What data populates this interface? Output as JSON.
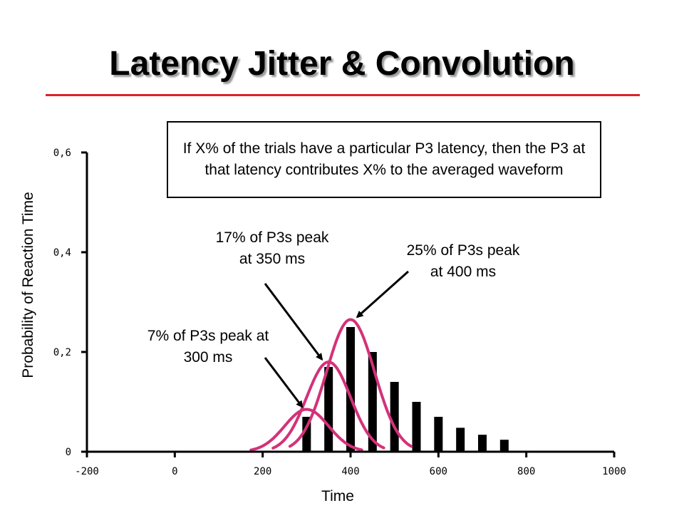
{
  "slide": {
    "title": "Latency Jitter & Convolution",
    "note": "If X% of the trials have a particular P3 latency, then the P3 at that latency contributes X% to the averaged waveform"
  },
  "colors": {
    "title_rule": "#e0202a",
    "bars": "#000000",
    "curves": "#d4317a",
    "arrows": "#000000"
  },
  "chart_data": {
    "type": "bar",
    "xlabel": "Time",
    "ylabel": "Probability of Reaction Time",
    "xlim": [
      -200,
      1000
    ],
    "ylim": [
      0,
      0.6
    ],
    "x_ticks": [
      -200,
      0,
      200,
      400,
      600,
      800,
      1000
    ],
    "x_tick_labels": [
      "-200",
      "0",
      "200",
      "400",
      "600",
      "800",
      "1000"
    ],
    "y_ticks": [
      0,
      0.2,
      0.4,
      0.6
    ],
    "y_tick_labels": [
      "0",
      "0,2",
      "0,4",
      "0,6"
    ],
    "bars": [
      {
        "x": 300,
        "y": 0.07
      },
      {
        "x": 350,
        "y": 0.17
      },
      {
        "x": 400,
        "y": 0.25
      },
      {
        "x": 450,
        "y": 0.2
      },
      {
        "x": 500,
        "y": 0.14
      },
      {
        "x": 550,
        "y": 0.1
      },
      {
        "x": 600,
        "y": 0.07
      },
      {
        "x": 650,
        "y": 0.048
      },
      {
        "x": 700,
        "y": 0.034
      },
      {
        "x": 750,
        "y": 0.024
      }
    ],
    "curves": [
      {
        "peak_x": 300,
        "peak_y": 0.085,
        "half_width": 110
      },
      {
        "peak_x": 350,
        "peak_y": 0.18,
        "half_width": 110
      },
      {
        "peak_x": 400,
        "peak_y": 0.265,
        "half_width": 120
      }
    ],
    "annotations": [
      {
        "lines": [
          "7% of P3s peak at",
          "300 ms"
        ],
        "target": [
          290,
          0.09
        ]
      },
      {
        "lines": [
          "17% of P3s peak",
          "at 350 ms"
        ],
        "target": [
          335,
          0.185
        ]
      },
      {
        "lines": [
          "25% of P3s peak",
          "at 400 ms"
        ],
        "target": [
          415,
          0.27
        ]
      }
    ]
  }
}
